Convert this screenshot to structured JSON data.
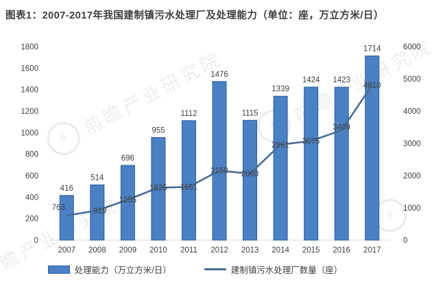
{
  "title": "图表1：2007-2017年我国建制镇污水处理厂及处理能力（单位：座，万立方米/日）",
  "watermark": {
    "text": "前瞻产业研究院",
    "logo_glyph": "⚡"
  },
  "colors": {
    "bar_fill": "#4a80c4",
    "bar_border": "#2d5c9e",
    "line": "#466d96",
    "text": "#404040",
    "axis_line": "#d9d9d9",
    "title_text": "#3d3d3d"
  },
  "legend": [
    {
      "label": "处理能力（万立方米/日）",
      "type": "bar"
    },
    {
      "label": "建制镇污水处理厂数量（座）",
      "type": "line"
    }
  ],
  "chart_data": {
    "type": "bar+line combo",
    "title": "图表1：2007-2017年我国建制镇污水处理厂及处理能力（单位：座，万立方米/日）",
    "categories": [
      "2007",
      "2008",
      "2009",
      "2010",
      "2011",
      "2012",
      "2013",
      "2014",
      "2015",
      "2016",
      "2017"
    ],
    "series": [
      {
        "name": "处理能力（万立方米/日）",
        "type": "bar",
        "axis": "left",
        "values": [
          416,
          514,
          696,
          955,
          1112,
          1476,
          1115,
          1339,
          1424,
          1423,
          1714
        ]
      },
      {
        "name": "建制镇污水处理厂数量（座）",
        "type": "line",
        "axis": "right",
        "values": [
          763,
          919,
          1255,
          1625,
          1651,
          2158,
          2060,
          2961,
          3075,
          3409,
          4810
        ]
      }
    ],
    "left_axis": {
      "range": [
        0,
        1800
      ],
      "ticks": [
        0,
        200,
        400,
        600,
        800,
        1000,
        1200,
        1400,
        1600,
        1800
      ]
    },
    "right_axis": {
      "range": [
        0,
        6000
      ],
      "ticks": [
        0,
        1000,
        2000,
        3000,
        4000,
        5000,
        6000
      ]
    },
    "grid": false,
    "data_labels": true,
    "legend_position": "bottom"
  }
}
